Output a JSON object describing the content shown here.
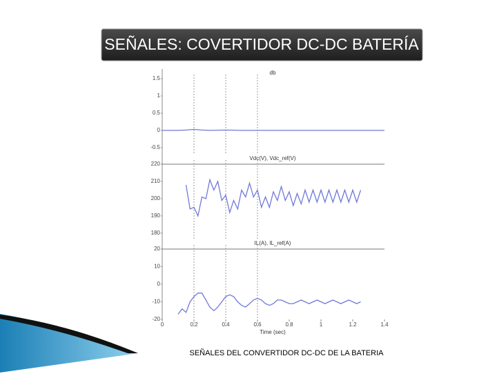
{
  "header": {
    "title": "SEÑALES: COVERTIDOR DC-DC BATERÍA"
  },
  "caption": "SEÑALES DEL CONVERTIDOR DC-DC DE LA BATERIA",
  "chart_data": [
    {
      "type": "line",
      "title": "db",
      "color": "#6f78d8",
      "x": [
        0,
        0.1,
        0.15,
        0.2,
        0.25,
        0.3,
        0.4,
        0.5,
        0.6,
        0.8,
        1.0,
        1.2,
        1.4
      ],
      "values": [
        0,
        0,
        0.01,
        0.03,
        0.01,
        0,
        0.01,
        0,
        0,
        0,
        0,
        0,
        0
      ],
      "xlim": [
        0,
        1.4
      ],
      "ylim": [
        -0.5,
        1.5
      ],
      "yticks": [
        1.5,
        1,
        0.5,
        0,
        -0.5
      ],
      "vlines": [
        0.2,
        0.4,
        0.6
      ]
    },
    {
      "type": "line",
      "title": "Vdc(V), Vdc_ref(V)",
      "color": "#6f78d8",
      "x": [
        0.15,
        0.175,
        0.2,
        0.225,
        0.25,
        0.275,
        0.3,
        0.325,
        0.35,
        0.375,
        0.4,
        0.425,
        0.45,
        0.475,
        0.5,
        0.525,
        0.55,
        0.575,
        0.6,
        0.625,
        0.65,
        0.675,
        0.7,
        0.725,
        0.75,
        0.775,
        0.8,
        0.825,
        0.85,
        0.875,
        0.9,
        0.925,
        0.95,
        0.975,
        1.0,
        1.025,
        1.05,
        1.075,
        1.1,
        1.125,
        1.15,
        1.175,
        1.2,
        1.225,
        1.25
      ],
      "values": [
        208,
        194,
        195,
        190,
        201,
        200,
        211,
        205,
        210,
        199,
        202,
        192,
        199,
        194,
        205,
        201,
        209,
        201,
        205,
        195,
        201,
        195,
        204,
        199,
        207,
        199,
        204,
        196,
        203,
        197,
        205,
        198,
        205,
        198,
        205,
        198,
        205,
        198,
        205,
        198,
        205,
        198,
        205,
        198,
        205
      ],
      "xlim": [
        0,
        1.4
      ],
      "ylim": [
        180,
        220
      ],
      "yticks": [
        220,
        210,
        200,
        190,
        180
      ],
      "vlines": [
        0.2,
        0.4,
        0.6
      ]
    },
    {
      "type": "line",
      "title": "IL(A), IL_ref(A)",
      "color": "#6f78d8",
      "xlabel": "Time (sec)",
      "x": [
        0.1,
        0.125,
        0.15,
        0.175,
        0.2,
        0.225,
        0.25,
        0.275,
        0.3,
        0.325,
        0.35,
        0.375,
        0.4,
        0.425,
        0.45,
        0.475,
        0.5,
        0.525,
        0.55,
        0.575,
        0.6,
        0.625,
        0.65,
        0.675,
        0.7,
        0.725,
        0.75,
        0.775,
        0.8,
        0.825,
        0.85,
        0.875,
        0.9,
        0.925,
        0.95,
        0.975,
        1.0,
        1.025,
        1.05,
        1.075,
        1.1,
        1.125,
        1.15,
        1.175,
        1.2,
        1.225,
        1.25
      ],
      "values": [
        -17,
        -14,
        -16,
        -10,
        -7,
        -5,
        -5,
        -9,
        -13,
        -15,
        -13,
        -10,
        -7,
        -6,
        -7,
        -10,
        -12,
        -13,
        -11,
        -9,
        -8,
        -9,
        -11,
        -12,
        -11,
        -9,
        -9,
        -10,
        -11,
        -11,
        -10,
        -9,
        -10,
        -11,
        -10,
        -9,
        -10,
        -11,
        -10,
        -9,
        -10,
        -11,
        -10,
        -9,
        -10,
        -11,
        -10
      ],
      "xlim": [
        0,
        1.4
      ],
      "ylim": [
        -20,
        20
      ],
      "yticks": [
        20,
        10,
        0,
        -10,
        -20
      ],
      "xticks": [
        0,
        0.2,
        0.4,
        0.6,
        0.8,
        1,
        1.2,
        1.4
      ],
      "vlines": [
        0.2,
        0.4,
        0.6
      ]
    }
  ]
}
